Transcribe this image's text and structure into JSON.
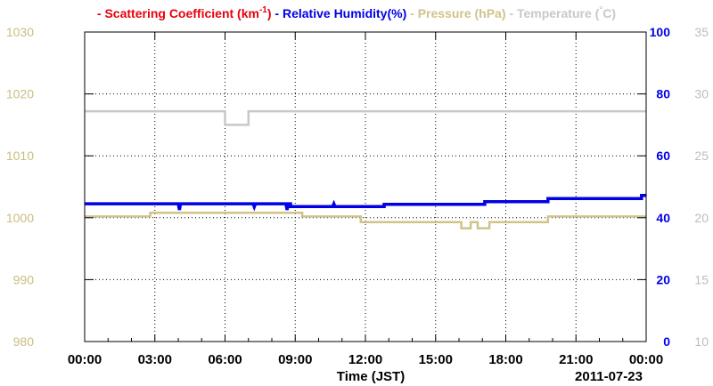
{
  "colors": {
    "scattering": "#e8000b",
    "humidity": "#0000e6",
    "pressure": "#cfc38a",
    "temperature": "#c8c8c8",
    "pressure_axis": "#c9be7e",
    "humidity_axis": "#0000e6",
    "temperature_axis": "#bdbdbd",
    "grid": "#000000"
  },
  "chart_data": {
    "type": "line",
    "legend": {
      "placement": "top",
      "items": [
        {
          "key": "scattering",
          "marker": "-",
          "label": "Scattering Coefficient (km",
          "sup": "-1",
          "tail": ")"
        },
        {
          "key": "humidity",
          "marker": "-",
          "label": "Relative Humidity(%)",
          "sup": "",
          "tail": ""
        },
        {
          "key": "pressure",
          "marker": "-",
          "label": "Pressure (hPa)",
          "sup": "",
          "tail": ""
        },
        {
          "key": "temperature",
          "marker": "-",
          "label": "Temperature (",
          "sup": "°",
          "tail": "C)"
        }
      ]
    },
    "xlabel": "Time (JST)",
    "date_label": "2011-07-23",
    "x_ticks": [
      "00:00",
      "03:00",
      "06:00",
      "09:00",
      "12:00",
      "15:00",
      "18:00",
      "21:00",
      "00:00"
    ],
    "xlim_hours": [
      0,
      24
    ],
    "grid": true,
    "axes": {
      "pressure": {
        "side": "left-outer",
        "ylim": [
          980,
          1030
        ],
        "ticks": [
          "980",
          "990",
          "1000",
          "1010",
          "1020",
          "1030"
        ]
      },
      "humidity": {
        "side": "right-inner",
        "ylim": [
          0,
          100
        ],
        "ticks": [
          "0",
          "20",
          "40",
          "60",
          "80",
          "100"
        ]
      },
      "temperature": {
        "side": "right-outer",
        "ylim": [
          10,
          35
        ],
        "ticks": [
          "10",
          "15",
          "20",
          "25",
          "30",
          "35"
        ]
      }
    },
    "series": [
      {
        "key": "temperature",
        "name": "Temperature (°C)",
        "axis": "temperature",
        "x": [
          0,
          6.0,
          6.0,
          7.0,
          7.0,
          24
        ],
        "y": [
          28.6,
          28.6,
          27.5,
          27.5,
          28.6,
          28.6
        ]
      },
      {
        "key": "pressure",
        "name": "Pressure (hPa)",
        "axis": "pressure",
        "x": [
          0,
          2.8,
          2.8,
          9.3,
          9.3,
          11.8,
          11.8,
          16.1,
          16.1,
          16.5,
          16.5,
          16.8,
          16.8,
          17.3,
          17.3,
          19.8,
          19.8,
          24
        ],
        "y": [
          1000.2,
          1000.2,
          1000.8,
          1000.8,
          1000.2,
          1000.2,
          999.3,
          999.3,
          998.3,
          998.3,
          999.3,
          999.3,
          998.3,
          998.3,
          999.3,
          999.3,
          1000.2,
          1000.2
        ]
      },
      {
        "key": "humidity",
        "name": "Relative Humidity(%)",
        "axis": "humidity",
        "x": [
          0,
          4.0,
          4.05,
          4.1,
          7.2,
          7.25,
          7.3,
          8.6,
          8.65,
          8.7,
          8.8,
          8.8,
          10.6,
          10.65,
          10.7,
          12.8,
          12.8,
          17.1,
          17.1,
          19.8,
          19.8,
          23.8,
          23.8,
          24
        ],
        "y": [
          44.5,
          44.5,
          42.5,
          44.5,
          44.5,
          43.5,
          44.5,
          44.5,
          42.5,
          44.5,
          44.5,
          43.6,
          43.6,
          44.5,
          43.6,
          43.6,
          44.3,
          44.3,
          45.2,
          45.2,
          46.2,
          46.2,
          47.2,
          47.2
        ]
      }
    ]
  }
}
